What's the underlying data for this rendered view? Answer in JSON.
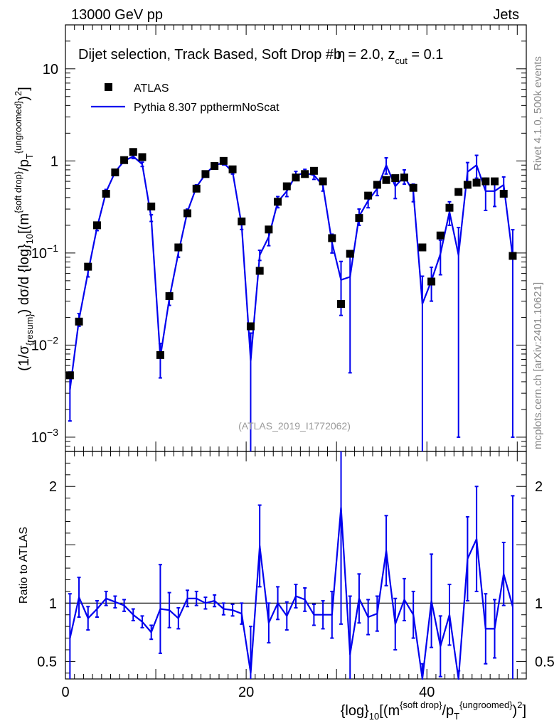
{
  "header": {
    "left": "13000 GeV pp",
    "right": "Jets"
  },
  "side_labels": {
    "rivet": "Rivet 4.1.0,  500k events",
    "mcplots": "mcplots.cern.ch [arXiv:2401.10621]"
  },
  "colors": {
    "data": "#000000",
    "mc": "#0000ee",
    "watermark": "#999999",
    "side_text": "#888888"
  },
  "chart_data": {
    "type": "scatter",
    "title": "Dijet selection, Track Based, Soft Drop #b",
    "title_suffix": "= 2.0, z",
    "title_sub": "cut",
    "title_tail": " = 0.1",
    "title_beta": "η",
    "watermark": "(ATLAS_2019_I1772062)",
    "legend": {
      "placement": "top-left",
      "data_label": "ATLAS",
      "mc_label": "Pythia 8.307 ppthermNoScat"
    },
    "main": {
      "yscale": "log",
      "ylim": [
        0.0007,
        30
      ],
      "ylabel_parts": {
        "open": "(1/σ",
        "sub_resum": "{resum}",
        "mid": ") dσ/d {log}",
        "sub_10": "10",
        "bracket": "[(m",
        "sup_sd": "{soft drop}",
        "slash": "/p",
        "sub_T": "T",
        "sup_ug": "{ungroomed}",
        "close": ")",
        "sup_2": "2",
        "end": "]"
      },
      "yticks": [
        {
          "value": 10,
          "base": "10",
          "exp": ""
        },
        {
          "value": 1,
          "base": "1",
          "exp": ""
        },
        {
          "value": 0.1,
          "base": "10",
          "exp": "−1"
        },
        {
          "value": 0.01,
          "base": "10",
          "exp": "−2"
        },
        {
          "value": 0.001,
          "base": "10",
          "exp": "−3"
        }
      ]
    },
    "ratio": {
      "ylabel": "Ratio to ATLAS",
      "ylim": [
        0.35,
        2.3
      ],
      "yticks": [
        {
          "value": 2,
          "label": "2"
        },
        {
          "value": 1,
          "label": "1"
        },
        {
          "value": 0.5,
          "label": "0.5"
        }
      ]
    },
    "xaxis": {
      "xlim": [
        0,
        51
      ],
      "ticks": [
        {
          "value": 0,
          "label": "0"
        },
        {
          "value": 20,
          "label": "20"
        },
        {
          "value": 40,
          "label": "40"
        }
      ],
      "xlabel_parts": {
        "open": "{log}",
        "sub_10": "10",
        "bracket": "[(m",
        "sup_sd": "{soft drop}",
        "slash": "/p",
        "sub_T": "T",
        "sup_ug": "{ungroomed}",
        "close": ")",
        "sup_2": "2",
        "end": "]"
      }
    },
    "series": [
      {
        "name": "ATLAS",
        "x": [
          0.5,
          1.5,
          2.5,
          3.5,
          4.5,
          5.5,
          6.5,
          7.5,
          8.5,
          9.5,
          10.5,
          11.5,
          12.5,
          13.5,
          14.5,
          15.5,
          16.5,
          17.5,
          18.5,
          19.5,
          20.5,
          21.5,
          22.5,
          23.5,
          24.5,
          25.5,
          26.5,
          27.5,
          28.5,
          29.5,
          30.5,
          31.5,
          32.5,
          33.5,
          34.5,
          35.5,
          36.5,
          37.5,
          38.5,
          39.5,
          40.5,
          41.5,
          42.5,
          43.5,
          44.5,
          45.5,
          46.5,
          47.5,
          48.5,
          49.5
        ],
        "values": [
          0.0047,
          0.018,
          0.071,
          0.2,
          0.44,
          0.75,
          1.02,
          1.25,
          1.1,
          0.32,
          0.0078,
          0.034,
          0.115,
          0.27,
          0.5,
          0.72,
          0.88,
          1.0,
          0.81,
          0.22,
          0.016,
          0.064,
          0.18,
          0.36,
          0.53,
          0.66,
          0.72,
          0.78,
          0.6,
          0.145,
          0.028,
          0.098,
          0.24,
          0.42,
          0.55,
          0.62,
          0.65,
          0.66,
          0.51,
          0.115,
          0.049,
          0.155,
          0.31,
          0.46,
          0.55,
          0.58,
          0.6,
          0.6,
          0.44,
          0.093
        ]
      },
      {
        "name": "Pythia 8.307 ppthermNoScat",
        "x": [
          0.5,
          1.5,
          2.5,
          3.5,
          4.5,
          5.5,
          6.5,
          7.5,
          8.5,
          9.5,
          10.5,
          11.5,
          12.5,
          13.5,
          14.5,
          15.5,
          16.5,
          17.5,
          18.5,
          19.5,
          20.5,
          21.5,
          22.5,
          23.5,
          24.5,
          25.5,
          26.5,
          27.5,
          28.5,
          29.5,
          30.5,
          31.5,
          32.5,
          33.5,
          34.5,
          35.5,
          36.5,
          37.5,
          38.5,
          39.5,
          40.5,
          41.5,
          42.5,
          43.5,
          44.5,
          45.5,
          46.5,
          47.5,
          48.5,
          49.5
        ],
        "values": [
          0.0033,
          0.019,
          0.062,
          0.19,
          0.46,
          0.76,
          1.0,
          1.12,
          0.92,
          0.24,
          0.0074,
          0.032,
          0.1,
          0.28,
          0.52,
          0.72,
          0.9,
          0.95,
          0.76,
          0.2,
          0.0068,
          0.095,
          0.15,
          0.36,
          0.47,
          0.7,
          0.74,
          0.7,
          0.54,
          0.13,
          0.051,
          0.055,
          0.25,
          0.37,
          0.5,
          0.9,
          0.53,
          0.68,
          0.46,
          0.028,
          0.05,
          0.098,
          0.28,
          0.095,
          0.76,
          0.9,
          0.47,
          0.47,
          0.55,
          0.09
        ],
        "errors": [
          0.0018,
          0.003,
          0.007,
          0.015,
          0.03,
          0.04,
          0.05,
          0.06,
          0.05,
          0.02,
          0.003,
          0.005,
          0.01,
          0.02,
          0.03,
          0.035,
          0.04,
          0.045,
          0.04,
          0.02,
          0.0067,
          0.012,
          0.03,
          0.05,
          0.06,
          0.07,
          0.07,
          0.07,
          0.07,
          0.03,
          0.03,
          0.05,
          0.05,
          0.06,
          0.08,
          0.18,
          0.14,
          0.12,
          0.1,
          0.028,
          0.02,
          0.04,
          0.08,
          0.094,
          0.2,
          0.25,
          0.18,
          0.15,
          0.12,
          0.089
        ]
      }
    ],
    "ratio_values": [
      0.7,
      1.05,
      0.87,
      0.95,
      1.04,
      1.01,
      0.98,
      0.9,
      0.84,
      0.75,
      0.95,
      0.94,
      0.87,
      1.04,
      1.04,
      1.0,
      1.02,
      0.95,
      0.94,
      0.91,
      0.4,
      1.49,
      0.83,
      1.0,
      0.89,
      1.06,
      1.03,
      0.9,
      0.9,
      0.9,
      1.82,
      0.56,
      1.04,
      0.88,
      0.91,
      1.45,
      0.82,
      1.03,
      0.9,
      0.24,
      1.02,
      0.63,
      0.9,
      0.21,
      1.38,
      1.55,
      0.78,
      0.78,
      1.25,
      0.97
    ],
    "ratio_errors": [
      0.38,
      0.17,
      0.1,
      0.07,
      0.06,
      0.05,
      0.05,
      0.05,
      0.05,
      0.06,
      0.38,
      0.15,
      0.09,
      0.07,
      0.06,
      0.05,
      0.05,
      0.05,
      0.05,
      0.09,
      0.4,
      0.35,
      0.17,
      0.14,
      0.12,
      0.1,
      0.1,
      0.09,
      0.12,
      0.2,
      1.0,
      0.5,
      0.21,
      0.15,
      0.15,
      0.3,
      0.22,
      0.18,
      0.2,
      0.24,
      0.4,
      0.26,
      0.26,
      0.21,
      0.36,
      0.45,
      0.3,
      0.25,
      0.27,
      0.95
    ]
  }
}
